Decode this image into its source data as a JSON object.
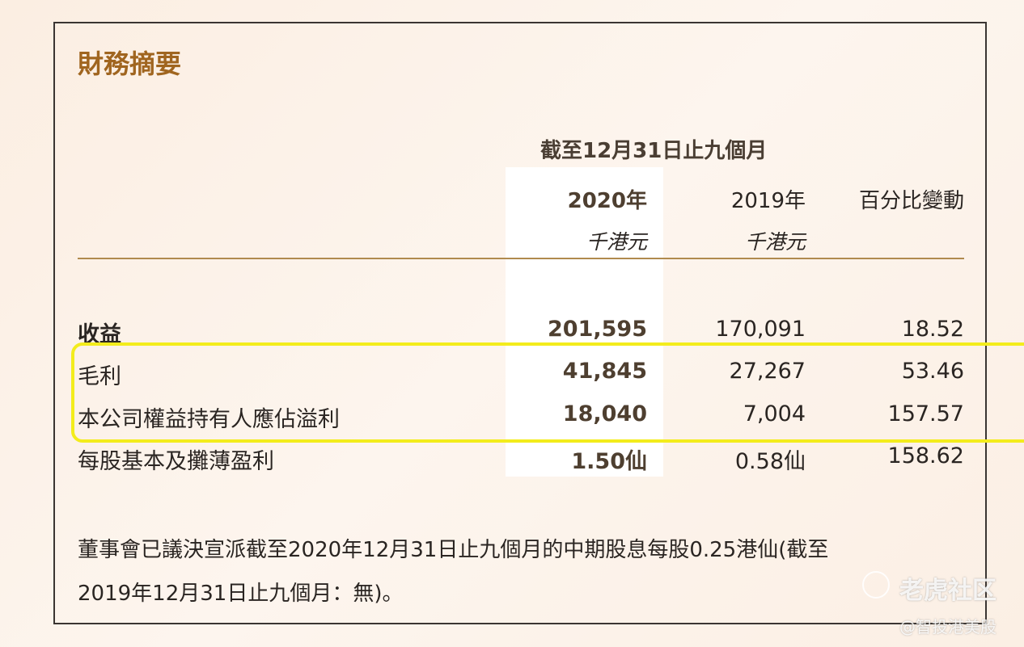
{
  "header": {
    "title": "財務摘要"
  },
  "table": {
    "period": "截至12月31日止九個月",
    "columns": [
      "2020年",
      "2019年",
      "百分比變動"
    ],
    "units": [
      "千港元",
      "千港元"
    ],
    "rows": [
      [
        "收益",
        "201,595",
        "170,091",
        "18.52"
      ],
      [
        "毛利",
        "41,845",
        "27,267",
        "53.46"
      ],
      [
        "本公司權益持有人應佔溢利",
        "18,040",
        "7,004",
        "157.57"
      ],
      [
        "每股基本及攤薄盈利",
        "1.50仙",
        "0.58仙",
        "158.62"
      ]
    ]
  },
  "footnote": {
    "lines": [
      "董事會已議決宣派截至2020年12月31日止九個月的中期股息每股0.25港仙(截至",
      "2019年12月31日止九個月：無)。"
    ]
  },
  "watermark": {
    "brand": "老虎社区",
    "handle": "@智投港美股"
  }
}
